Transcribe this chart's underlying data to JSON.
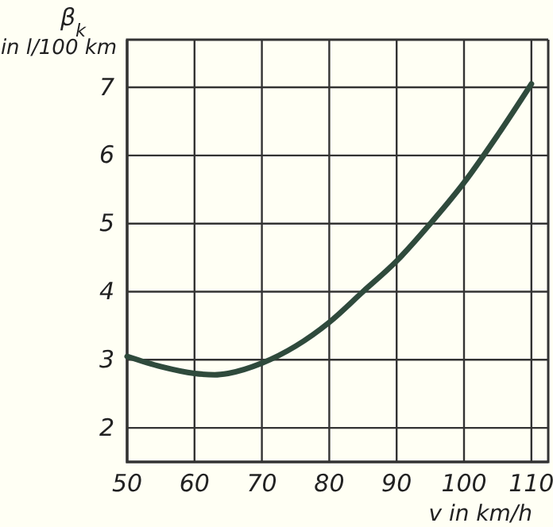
{
  "chart_data": {
    "type": "line",
    "xlabel": "v in km/h",
    "ylabel": "β$_{k}$ in l/100 km",
    "x": [
      50,
      55,
      60,
      63,
      65,
      70,
      75,
      80,
      85,
      90,
      95,
      100,
      105,
      110
    ],
    "series": [
      {
        "color": "#2f4a3c",
        "values": [
          3.05,
          2.9,
          2.8,
          2.78,
          2.8,
          2.95,
          3.2,
          3.55,
          4.0,
          4.45,
          5.0,
          5.6,
          6.3,
          7.05
        ]
      }
    ],
    "xlim": [
      50,
      112.5
    ],
    "ylim": [
      1.5,
      7.7
    ],
    "xticks": [
      50,
      60,
      70,
      80,
      90,
      100,
      110
    ],
    "yticks": [
      2,
      3,
      4,
      5,
      6,
      7
    ],
    "grid": true,
    "line_style": "solid",
    "marker": "none"
  }
}
